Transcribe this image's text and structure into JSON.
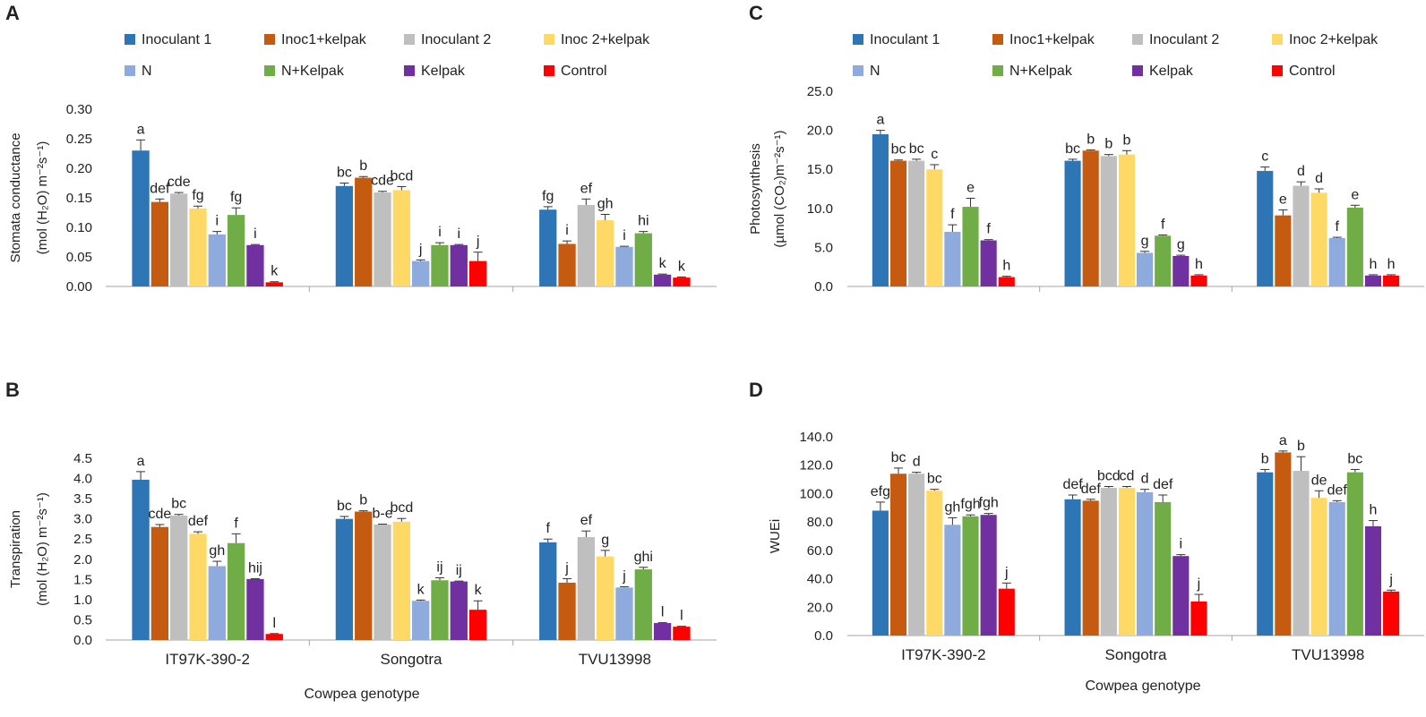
{
  "series_names": [
    "Inoculant 1",
    "Inoc1+kelpak",
    "Inoculant 2",
    "Inoc 2+kelpak",
    "N",
    "N+Kelpak",
    "Kelpak",
    "Control"
  ],
  "series_colors": [
    "#2E75B6",
    "#C55A11",
    "#BFBFBF",
    "#FFD966",
    "#8FAADC",
    "#70AD47",
    "#7030A0",
    "#FF0000"
  ],
  "xaxis_label": "Cowpea genotype",
  "chart_data": [
    {
      "type": "bar",
      "panel": "A",
      "categories": [
        "IT97K-390-2",
        "Songotra",
        "TVU13998"
      ],
      "ylabel_lines": [
        "Stomata conductance",
        "(mol (H₂O) m⁻²s⁻¹)"
      ],
      "ylim": [
        0,
        0.3
      ],
      "yticks": [
        "0.00",
        "0.05",
        "0.10",
        "0.15",
        "0.20",
        "0.25",
        "0.30"
      ],
      "show_xlabels": false,
      "show_xtitle": false,
      "series": [
        {
          "name": "Inoculant 1",
          "values": [
            0.23,
            0.17,
            0.13
          ],
          "errors": [
            0.018,
            0.005,
            0.005
          ],
          "letters": [
            "a",
            "bc",
            "fg"
          ]
        },
        {
          "name": "Inoc1+kelpak",
          "values": [
            0.143,
            0.184,
            0.072
          ],
          "errors": [
            0.005,
            0.002,
            0.005
          ],
          "letters": [
            "def",
            "b",
            "i"
          ]
        },
        {
          "name": "Inoculant 2",
          "values": [
            0.157,
            0.159,
            0.138
          ],
          "errors": [
            0.002,
            0.002,
            0.01
          ],
          "letters": [
            "cde",
            "cde",
            "ef"
          ]
        },
        {
          "name": "Inoc 2+kelpak",
          "values": [
            0.132,
            0.163,
            0.112
          ],
          "errors": [
            0.004,
            0.006,
            0.01
          ],
          "letters": [
            "fg",
            "bcd",
            "gh"
          ]
        },
        {
          "name": "N",
          "values": [
            0.088,
            0.043,
            0.067
          ],
          "errors": [
            0.005,
            0.002,
            0.001
          ],
          "letters": [
            "i",
            "j",
            "i"
          ]
        },
        {
          "name": "N+Kelpak",
          "values": [
            0.121,
            0.07,
            0.09
          ],
          "errors": [
            0.012,
            0.004,
            0.003
          ],
          "letters": [
            "fg",
            "i",
            "hi"
          ]
        },
        {
          "name": "Kelpak",
          "values": [
            0.07,
            0.07,
            0.02
          ],
          "errors": [
            0.001,
            0.001,
            0.001
          ],
          "letters": [
            "i",
            "i",
            "k"
          ]
        },
        {
          "name": "Control",
          "values": [
            0.007,
            0.043,
            0.015
          ],
          "errors": [
            0.001,
            0.015,
            0.001
          ],
          "letters": [
            "k",
            "j",
            "k"
          ]
        }
      ]
    },
    {
      "type": "bar",
      "panel": "B",
      "categories": [
        "IT97K-390-2",
        "Songotra",
        "TVU13998"
      ],
      "ylabel_lines": [
        "Transpiration",
        "(mol (H₂O) m⁻²s⁻¹)"
      ],
      "ylim": [
        0,
        4.5
      ],
      "yticks": [
        "0.0",
        "0.5",
        "1.0",
        "1.5",
        "2.0",
        "2.5",
        "3.0",
        "3.5",
        "4.0",
        "4.5"
      ],
      "show_xlabels": true,
      "show_xtitle": true,
      "series": [
        {
          "name": "Inoculant 1",
          "values": [
            3.97,
            3.0,
            2.42
          ],
          "errors": [
            0.2,
            0.06,
            0.08
          ],
          "letters": [
            "a",
            "bc",
            "f"
          ]
        },
        {
          "name": "Inoc1+kelpak",
          "values": [
            2.8,
            3.18,
            1.42
          ],
          "errors": [
            0.06,
            0.02,
            0.1
          ],
          "letters": [
            "cde",
            "b",
            "j"
          ]
        },
        {
          "name": "Inoculant 2",
          "values": [
            3.08,
            2.86,
            2.55
          ],
          "errors": [
            0.03,
            0.01,
            0.15
          ],
          "letters": [
            "bc",
            "b-e",
            "ef"
          ]
        },
        {
          "name": "Inoc 2+kelpak",
          "values": [
            2.63,
            2.93,
            2.07
          ],
          "errors": [
            0.05,
            0.08,
            0.15
          ],
          "letters": [
            "def",
            "bcd",
            "g"
          ]
        },
        {
          "name": "N",
          "values": [
            1.83,
            0.97,
            1.3
          ],
          "errors": [
            0.12,
            0.02,
            0.02
          ],
          "letters": [
            "gh",
            "k",
            "j"
          ]
        },
        {
          "name": "N+Kelpak",
          "values": [
            2.4,
            1.48,
            1.75
          ],
          "errors": [
            0.23,
            0.06,
            0.05
          ],
          "letters": [
            "f",
            "ij",
            "ghi"
          ]
        },
        {
          "name": "Kelpak",
          "values": [
            1.51,
            1.45,
            0.42
          ],
          "errors": [
            0.01,
            0.01,
            0.01
          ],
          "letters": [
            "hij",
            "ij",
            "l"
          ]
        },
        {
          "name": "Control",
          "values": [
            0.15,
            0.75,
            0.33
          ],
          "errors": [
            0.01,
            0.22,
            0.01
          ],
          "letters": [
            "l",
            "k",
            "l"
          ]
        }
      ]
    },
    {
      "type": "bar",
      "panel": "C",
      "categories": [
        "IT97K-390-2",
        "Songotra",
        "TVU13998"
      ],
      "ylabel_lines": [
        "Photosynthesis",
        "(µmol (CO₂)m⁻²s⁻¹)"
      ],
      "ylim": [
        0,
        25
      ],
      "yticks": [
        "0.0",
        "5.0",
        "10.0",
        "15.0",
        "20.0",
        "25.0"
      ],
      "show_xlabels": false,
      "show_xtitle": false,
      "series": [
        {
          "name": "Inoculant 1",
          "values": [
            19.5,
            16.1,
            14.8
          ],
          "errors": [
            0.5,
            0.2,
            0.5
          ],
          "letters": [
            "a",
            "bc",
            "c"
          ]
        },
        {
          "name": "Inoc1+kelpak",
          "values": [
            16.1,
            17.4,
            9.1
          ],
          "errors": [
            0.1,
            0.1,
            0.7
          ],
          "letters": [
            "bc",
            "b",
            "e"
          ]
        },
        {
          "name": "Inoculant 2",
          "values": [
            16.1,
            16.7,
            12.9
          ],
          "errors": [
            0.2,
            0.2,
            0.5
          ],
          "letters": [
            "bc",
            "b",
            "d"
          ]
        },
        {
          "name": "Inoc 2+kelpak",
          "values": [
            15.0,
            16.9,
            12.0
          ],
          "errors": [
            0.6,
            0.5,
            0.5
          ],
          "letters": [
            "c",
            "b",
            "d"
          ]
        },
        {
          "name": "N",
          "values": [
            7.0,
            4.3,
            6.2
          ],
          "errors": [
            0.9,
            0.2,
            0.1
          ],
          "letters": [
            "f",
            "g",
            "f"
          ]
        },
        {
          "name": "N+Kelpak",
          "values": [
            10.2,
            6.5,
            10.1
          ],
          "errors": [
            1.1,
            0.1,
            0.3
          ],
          "letters": [
            "e",
            "f",
            "e"
          ]
        },
        {
          "name": "Kelpak",
          "values": [
            5.9,
            3.9,
            1.4
          ],
          "errors": [
            0.1,
            0.1,
            0.1
          ],
          "letters": [
            "f",
            "g",
            "h"
          ]
        },
        {
          "name": "Control",
          "values": [
            1.2,
            1.4,
            1.4
          ],
          "errors": [
            0.1,
            0.1,
            0.1
          ],
          "letters": [
            "h",
            "h",
            "h"
          ]
        }
      ]
    },
    {
      "type": "bar",
      "panel": "D",
      "categories": [
        "IT97K-390-2",
        "Songotra",
        "TVU13998"
      ],
      "ylabel_lines": [
        "WUEi"
      ],
      "ylim": [
        0,
        140
      ],
      "yticks": [
        "0.0",
        "20.0",
        "40.0",
        "60.0",
        "80.0",
        "100.0",
        "120.0",
        "140.0"
      ],
      "show_xlabels": true,
      "show_xtitle": true,
      "series": [
        {
          "name": "Inoculant 1",
          "values": [
            88,
            96,
            115
          ],
          "errors": [
            6,
            3,
            2
          ],
          "letters": [
            "efg",
            "def",
            "b"
          ]
        },
        {
          "name": "Inoc1+kelpak",
          "values": [
            114,
            95,
            129
          ],
          "errors": [
            4,
            1,
            1
          ],
          "letters": [
            "bc",
            "def",
            "a"
          ]
        },
        {
          "name": "Inoculant 2",
          "values": [
            114,
            104,
            116
          ],
          "errors": [
            1,
            1,
            10
          ],
          "letters": [
            "d",
            "bcd",
            "b"
          ]
        },
        {
          "name": "Inoc 2+kelpak",
          "values": [
            102,
            104,
            97
          ],
          "errors": [
            1,
            1,
            5
          ],
          "letters": [
            "bc",
            "cd",
            "de"
          ]
        },
        {
          "name": "N",
          "values": [
            78,
            101,
            94
          ],
          "errors": [
            5,
            2,
            1
          ],
          "letters": [
            "gh",
            "d",
            "def"
          ]
        },
        {
          "name": "N+Kelpak",
          "values": [
            84,
            94,
            115
          ],
          "errors": [
            1,
            5,
            2
          ],
          "letters": [
            "fgh",
            "def",
            "bc"
          ]
        },
        {
          "name": "Kelpak",
          "values": [
            85,
            56,
            77
          ],
          "errors": [
            1,
            1,
            4
          ],
          "letters": [
            "fgh",
            "i",
            "h"
          ]
        },
        {
          "name": "Control",
          "values": [
            33,
            24,
            31
          ],
          "errors": [
            4,
            5,
            1
          ],
          "letters": [
            "j",
            "j",
            "j"
          ]
        }
      ]
    }
  ]
}
